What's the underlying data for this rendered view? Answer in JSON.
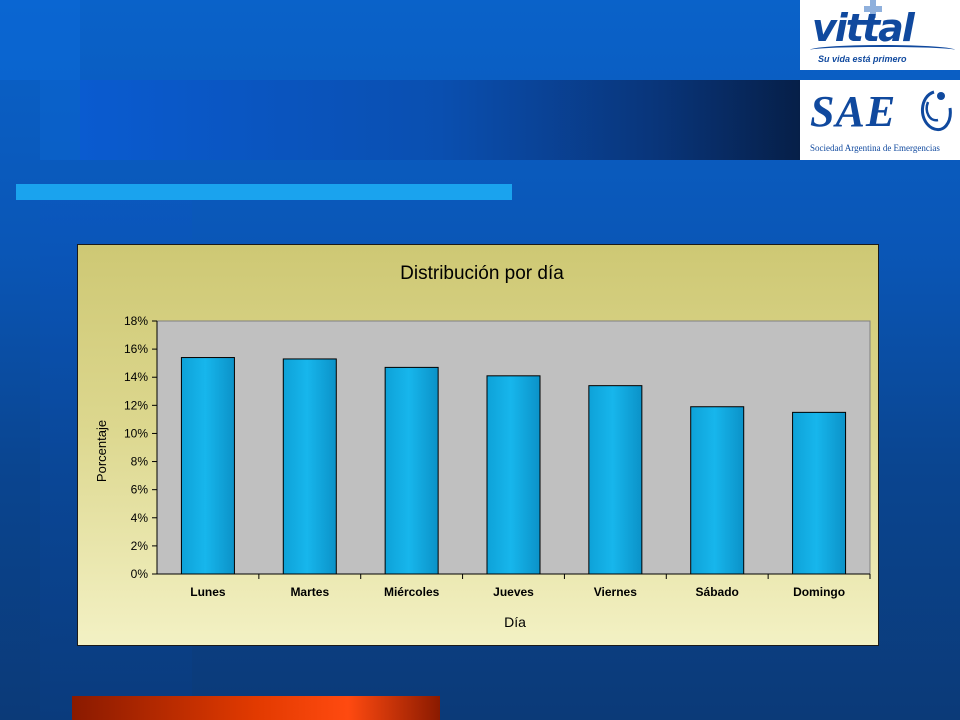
{
  "logos": {
    "vittal": {
      "name": "vittal",
      "tagline": "Su vida está primero"
    },
    "sae": {
      "name": "SAE",
      "subtitle": "Sociedad Argentina de Emergencias"
    }
  },
  "colors": {
    "bar": "#17b6ec",
    "plot_bg": "#c0c0c0",
    "brand_blue": "#10499e"
  },
  "chart_data": {
    "type": "bar",
    "title": "Distribución por día",
    "xlabel": "Día",
    "ylabel": "Porcentaje",
    "categories": [
      "Lunes",
      "Martes",
      "Miércoles",
      "Jueves",
      "Viernes",
      "Sábado",
      "Domingo"
    ],
    "values": [
      15.4,
      15.3,
      14.7,
      14.1,
      13.4,
      11.9,
      11.5
    ],
    "ylim": [
      0,
      18
    ],
    "yticks": [
      "0%",
      "2%",
      "4%",
      "6%",
      "8%",
      "10%",
      "12%",
      "14%",
      "16%",
      "18%"
    ],
    "grid": false,
    "legend": "none"
  }
}
